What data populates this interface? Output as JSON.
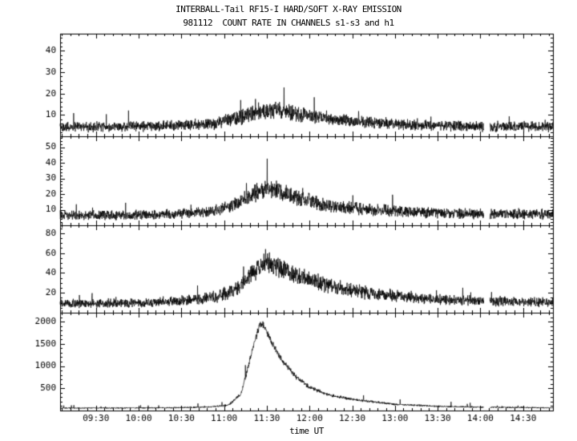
{
  "header": {
    "title_line1": "INTERBALL-Tail RF15-I HARD/SOFT X-RAY EMISSION",
    "title_line2": "981112  COUNT RATE IN CHANNELS s1-s3 and h1"
  },
  "chart_data": {
    "type": "line",
    "title": "INTERBALL-Tail RF15-I HARD/SOFT X-RAY EMISSION",
    "subtitle": "981112  COUNT RATE IN CHANNELS s1-s3 and h1",
    "xlabel": "time UT",
    "x_unit": "hours UT",
    "x_range": [
      9.08,
      14.85
    ],
    "x_tick_hours": [
      9.5,
      10,
      10.5,
      11,
      11.5,
      12,
      12.5,
      13,
      13.5,
      14,
      14.5
    ],
    "x_tick_labels": [
      "09:30",
      "10:00",
      "10:30",
      "11:00",
      "11:30",
      "12:00",
      "12:30",
      "13:00",
      "13:30",
      "14:00",
      "14:30"
    ],
    "x_minor_step": 0.1,
    "gap": [
      14.04,
      14.11
    ],
    "line_color": "#000000",
    "background": "#ffffff",
    "legend": "off",
    "grid": "off",
    "samples_per_panel": 2400,
    "panels": [
      {
        "channel": "s1",
        "ylim": [
          0,
          48
        ],
        "yticks": [
          10,
          20,
          30,
          40
        ],
        "y_minor_step": 2,
        "noise_k": 1.3,
        "spike_prob": 0.012,
        "spike_scale": 2.2,
        "t": [
          9.08,
          9.8,
          10.5,
          10.9,
          11.2,
          11.45,
          11.6,
          11.8,
          12.1,
          12.5,
          13.0,
          13.5,
          14.0,
          14.85
        ],
        "mean": [
          4.5,
          4.5,
          5.0,
          6.0,
          9.0,
          12.0,
          12.5,
          11.0,
          9.0,
          7.0,
          5.5,
          5.0,
          4.5,
          4.5
        ]
      },
      {
        "channel": "s2",
        "ylim": [
          0,
          57
        ],
        "yticks": [
          10,
          20,
          30,
          40,
          50
        ],
        "y_minor_step": 2,
        "noise_k": 1.4,
        "spike_prob": 0.01,
        "spike_scale": 2.2,
        "t": [
          9.08,
          9.8,
          10.4,
          10.8,
          11.1,
          11.35,
          11.5,
          11.65,
          11.9,
          12.2,
          12.6,
          13.0,
          13.5,
          14.0,
          14.85
        ],
        "mean": [
          6.5,
          6.5,
          7.0,
          8.5,
          13.0,
          20.0,
          24.0,
          22.0,
          17.0,
          13.0,
          10.5,
          9.0,
          8.0,
          7.5,
          7.0
        ]
      },
      {
        "channel": "s3",
        "ylim": [
          0,
          88
        ],
        "yticks": [
          20,
          40,
          60,
          80
        ],
        "y_minor_step": 5,
        "noise_k": 1.7,
        "spike_prob": 0.01,
        "spike_scale": 2.2,
        "t": [
          9.08,
          9.6,
          10.1,
          10.5,
          10.9,
          11.15,
          11.35,
          11.5,
          11.65,
          11.9,
          12.2,
          12.6,
          13.0,
          13.5,
          14.0,
          14.85
        ],
        "mean": [
          9.0,
          9.5,
          10.0,
          12.0,
          16.0,
          24.0,
          42.0,
          50.0,
          46.0,
          36.0,
          28.0,
          21.0,
          17.0,
          13.5,
          12.0,
          10.5
        ]
      },
      {
        "channel": "h1",
        "ylim": [
          0,
          2200
        ],
        "yticks": [
          500,
          1000,
          1500,
          2000
        ],
        "y_minor_step": 100,
        "noise_k": 2.2,
        "spike_prob": 0.008,
        "spike_scale": 5,
        "t": [
          9.08,
          9.7,
          10.3,
          10.8,
          11.05,
          11.2,
          11.33,
          11.42,
          11.47,
          11.55,
          11.67,
          11.83,
          12.0,
          12.25,
          12.5,
          13.0,
          13.5,
          14.0,
          14.4,
          14.85
        ],
        "mean": [
          55,
          58,
          62,
          75,
          120,
          380,
          1350,
          1960,
          1900,
          1550,
          1150,
          780,
          520,
          340,
          250,
          140,
          95,
          75,
          70,
          60
        ]
      }
    ]
  }
}
